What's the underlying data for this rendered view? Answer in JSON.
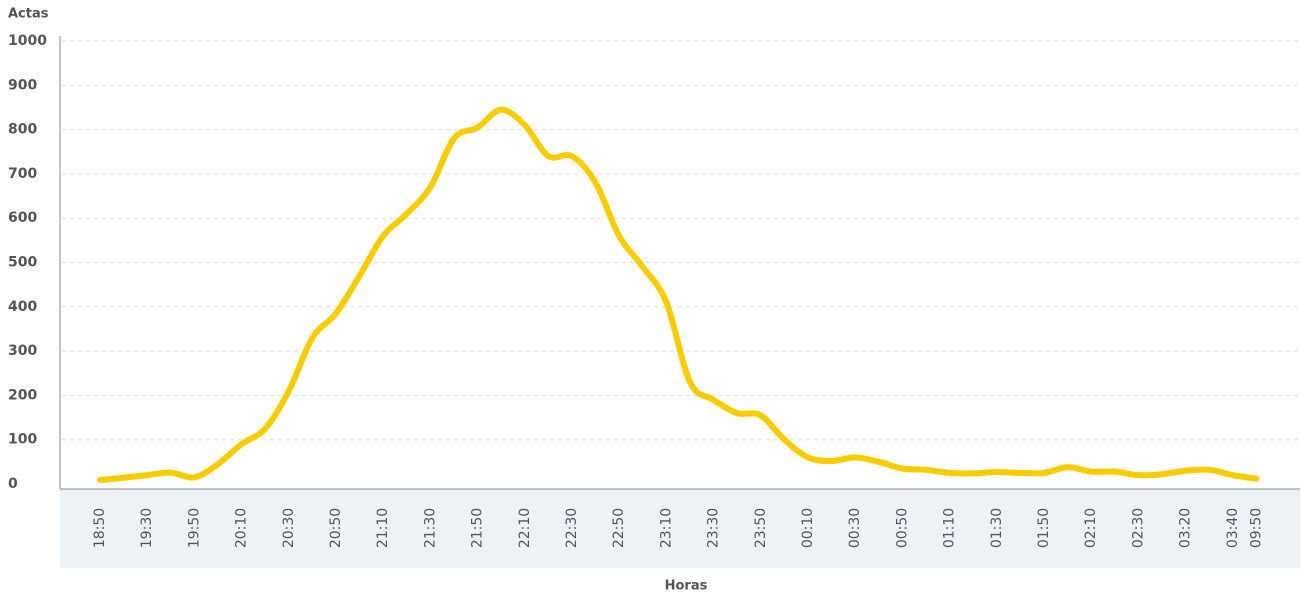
{
  "chart_data": {
    "type": "line",
    "y_label": "Actas",
    "x_label": "Horas",
    "categories": [
      "18:50",
      null,
      "19:30",
      null,
      "19:50",
      null,
      "20:10",
      null,
      "20:30",
      null,
      "20:50",
      null,
      "21:10",
      null,
      "21:30",
      null,
      "21:50",
      null,
      "22:10",
      null,
      "22:30",
      null,
      "22:50",
      null,
      "23:10",
      null,
      "23:30",
      null,
      "23:50",
      null,
      "00:10",
      null,
      "00:30",
      null,
      "00:50",
      null,
      "01:10",
      null,
      "01:30",
      null,
      "01:50",
      null,
      "02:10",
      null,
      "02:30",
      null,
      "03:20",
      null,
      "03:40",
      "09:50"
    ],
    "series": [
      {
        "name": "Actas",
        "color": "#f9cc00",
        "values": [
          9,
          14,
          20,
          26,
          15,
          45,
          90,
          125,
          210,
          330,
          385,
          470,
          560,
          610,
          670,
          780,
          805,
          845,
          810,
          740,
          740,
          680,
          560,
          490,
          410,
          230,
          190,
          160,
          155,
          100,
          60,
          52,
          60,
          50,
          35,
          32,
          25,
          24,
          27,
          25,
          25,
          38,
          28,
          28,
          20,
          22,
          30,
          32,
          20,
          12
        ]
      }
    ],
    "ylim": [
      0,
      1000
    ],
    "yticks": [
      0,
      100,
      200,
      300,
      400,
      500,
      600,
      700,
      800,
      900,
      1000
    ],
    "grid": true
  }
}
